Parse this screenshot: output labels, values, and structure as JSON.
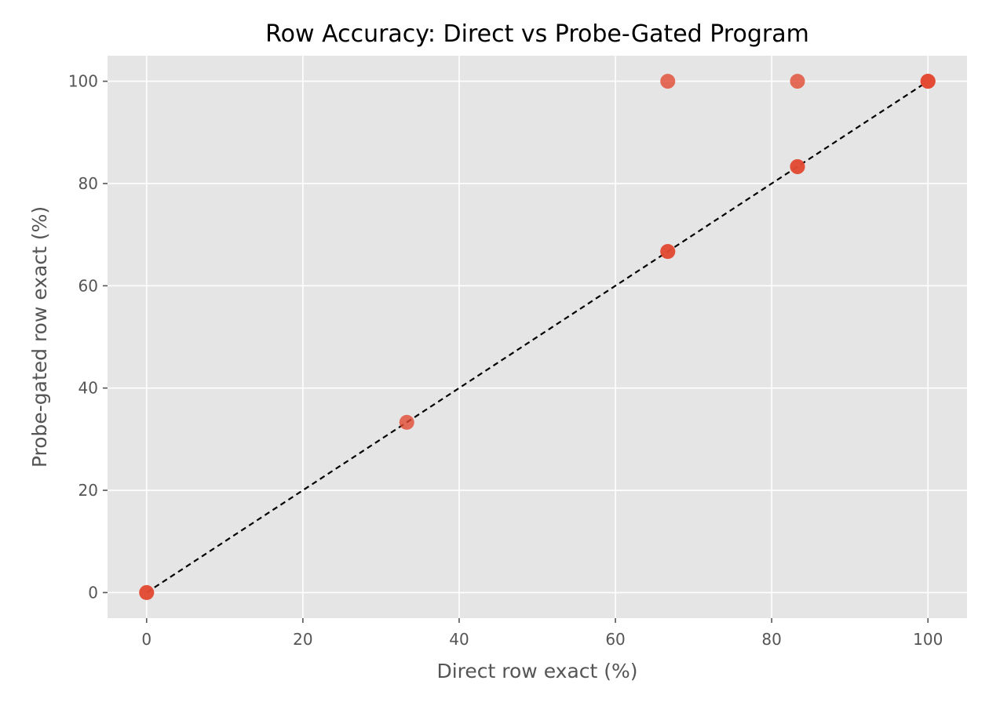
{
  "chart_data": {
    "type": "scatter",
    "title": "Row Accuracy: Direct vs Probe-Gated Program",
    "xlabel": "Direct row exact (%)",
    "ylabel": "Probe-gated row exact (%)",
    "xlim": [
      -5,
      105
    ],
    "ylim": [
      -5,
      105
    ],
    "xticks": [
      0,
      20,
      40,
      60,
      80,
      100
    ],
    "yticks": [
      0,
      20,
      40,
      60,
      80,
      100
    ],
    "grid": true,
    "points": [
      {
        "x": 0,
        "y": 0
      },
      {
        "x": 0,
        "y": 0
      },
      {
        "x": 33.3,
        "y": 33.3
      },
      {
        "x": 66.7,
        "y": 66.7
      },
      {
        "x": 66.7,
        "y": 66.7
      },
      {
        "x": 66.7,
        "y": 100
      },
      {
        "x": 83.3,
        "y": 83.3
      },
      {
        "x": 83.3,
        "y": 83.3
      },
      {
        "x": 83.3,
        "y": 100
      },
      {
        "x": 100,
        "y": 100
      },
      {
        "x": 100,
        "y": 100
      },
      {
        "x": 100,
        "y": 100
      }
    ],
    "reference_line": {
      "x": [
        0,
        100
      ],
      "y": [
        0,
        100
      ],
      "style": "dashed",
      "color": "#000000"
    },
    "colors": {
      "point": "#e24a33",
      "plot_bg": "#e5e5e5",
      "grid": "#ffffff"
    }
  }
}
